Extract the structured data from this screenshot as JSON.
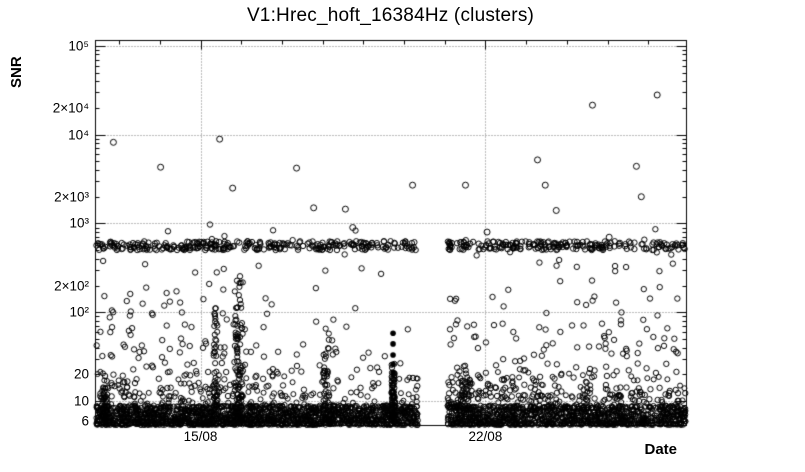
{
  "chart_data": {
    "type": "scatter",
    "title": "V1:Hrec_hoft_16384Hz (clusters)",
    "xlabel": "Date",
    "ylabel": "SNR",
    "y_scale": "log",
    "y_min": 5.3,
    "y_max": 115000,
    "x_min": 0,
    "x_max": 14.52,
    "marker": "open-circle",
    "marker_color": "#000000",
    "grid": true,
    "seed": 1337,
    "x_ticks": [
      {
        "day": 2.58,
        "label": "15/08"
      },
      {
        "day": 9.58,
        "label": "22/08"
      }
    ],
    "x_minor_tick_days": [
      0.58,
      1.58,
      2.58,
      3.58,
      4.58,
      5.58,
      6.58,
      7.58,
      8.58,
      9.58,
      10.58,
      11.58,
      12.58,
      13.58
    ],
    "grid_y_values": [
      100000,
      10000,
      1000,
      100,
      10
    ],
    "y_tick_labels": [
      {
        "value": 100000,
        "label": "10⁵"
      },
      {
        "value": 20000,
        "label": "2×10⁴"
      },
      {
        "value": 10000,
        "label": "10⁴"
      },
      {
        "value": 2000,
        "label": "2×10³"
      },
      {
        "value": 1000,
        "label": "10³"
      },
      {
        "value": 200,
        "label": "2×10²"
      },
      {
        "value": 100,
        "label": "10²"
      },
      {
        "value": 20,
        "label": "20"
      },
      {
        "value": 10,
        "label": "10"
      },
      {
        "value": 6,
        "label": "6"
      }
    ],
    "gaps": [
      [
        7.93,
        8.65
      ]
    ],
    "clusters": [
      {
        "name": "bottom-dense",
        "x_min": 0.02,
        "x_max": 14.5,
        "count": 2600,
        "log_snr_min": 0.73,
        "log_snr_max": 0.95,
        "bias": 1.4,
        "respect_gaps": true,
        "radius": 2.5
      },
      {
        "name": "bottom-tail",
        "x_min": 0.02,
        "x_max": 14.5,
        "count": 380,
        "log_snr_min": 0.93,
        "log_snr_max": 1.33,
        "bias": 2.8,
        "respect_gaps": true,
        "radius": 2.5
      },
      {
        "name": "snr500-band",
        "x_min": 0.02,
        "x_max": 14.5,
        "count": 520,
        "log_snr_min": 2.7,
        "log_snr_max": 2.8,
        "bias": 1.0,
        "respect_gaps": true,
        "radius": 2.7
      },
      {
        "name": "band-stragglers",
        "x_min": 0.1,
        "x_max": 14.4,
        "count": 16,
        "log_snr_min": 2.46,
        "log_snr_max": 2.7,
        "bias": 1.6,
        "respect_gaps": true,
        "radius": 2.7
      },
      {
        "name": "above-band",
        "x_min": 0.3,
        "x_max": 14.2,
        "count": 10,
        "log_snr_min": 2.81,
        "log_snr_max": 2.99,
        "bias": 1.4,
        "respect_gaps": true,
        "radius": 2.7
      },
      {
        "name": "mid-scatter",
        "x_min": 0.02,
        "x_max": 14.5,
        "count": 250,
        "log_snr_min": 1.05,
        "log_snr_max": 2.55,
        "bias": 2.6,
        "respect_gaps": true,
        "radius": 2.7
      },
      {
        "name": "left-mid-extra",
        "x_min": 0.1,
        "x_max": 4.3,
        "count": 80,
        "log_snr_min": 1.15,
        "log_snr_max": 2.45,
        "bias": 2.0,
        "respect_gaps": false,
        "radius": 2.7
      },
      {
        "name": "right-mid-extra",
        "x_min": 8.65,
        "x_max": 14.5,
        "count": 110,
        "log_snr_min": 1.0,
        "log_snr_max": 2.2,
        "bias": 2.4,
        "respect_gaps": false,
        "radius": 2.7
      },
      {
        "name": "burst-13aug",
        "x_min": 0.16,
        "x_max": 0.3,
        "count": 40,
        "log_snr_min": 0.78,
        "log_snr_max": 1.25,
        "bias": 1.5,
        "respect_gaps": false,
        "radius": 2.5
      },
      {
        "name": "burst-15aug-a",
        "x_min": 2.9,
        "x_max": 3.0,
        "count": 55,
        "log_snr_min": 0.78,
        "log_snr_max": 2.05,
        "bias": 1.7,
        "respect_gaps": false,
        "radius": 2.6
      },
      {
        "name": "burst-15aug-b",
        "x_min": 3.42,
        "x_max": 3.62,
        "count": 95,
        "log_snr_min": 0.78,
        "log_snr_max": 2.35,
        "bias": 1.9,
        "respect_gaps": false,
        "radius": 2.6
      },
      {
        "name": "burst-18aug",
        "x_min": 5.58,
        "x_max": 5.74,
        "count": 45,
        "log_snr_min": 0.78,
        "log_snr_max": 1.82,
        "bias": 1.8,
        "respect_gaps": false,
        "radius": 2.6
      },
      {
        "name": "burst-20aug",
        "x_min": 7.27,
        "x_max": 7.36,
        "count": 85,
        "log_snr_min": 0.78,
        "log_snr_max": 1.42,
        "bias": 1.5,
        "respect_gaps": false,
        "radius": 2.6
      },
      {
        "name": "post-gap-cluster",
        "x_min": 8.65,
        "x_max": 9.25,
        "count": 45,
        "log_snr_min": 0.9,
        "log_snr_max": 1.45,
        "bias": 1.6,
        "respect_gaps": false,
        "radius": 2.6
      }
    ],
    "outliers": [
      [
        0.44,
        8200
      ],
      [
        1.6,
        4300
      ],
      [
        3.05,
        8900
      ],
      [
        3.37,
        2500
      ],
      [
        4.94,
        4200
      ],
      [
        5.36,
        1500
      ],
      [
        6.14,
        1450
      ],
      [
        6.32,
        900
      ],
      [
        7.79,
        2700
      ],
      [
        9.09,
        2700
      ],
      [
        9.62,
        800
      ],
      [
        10.86,
        5200
      ],
      [
        11.05,
        2700
      ],
      [
        11.32,
        1400
      ],
      [
        12.21,
        21500
      ],
      [
        12.62,
        700
      ],
      [
        13.29,
        4400
      ],
      [
        13.41,
        2000
      ],
      [
        13.8,
        28000
      ]
    ],
    "filled_points": [
      [
        7.31,
        58
      ],
      [
        7.31,
        44
      ],
      [
        7.31,
        33
      ],
      [
        7.31,
        26
      ],
      [
        7.31,
        21
      ]
    ]
  }
}
